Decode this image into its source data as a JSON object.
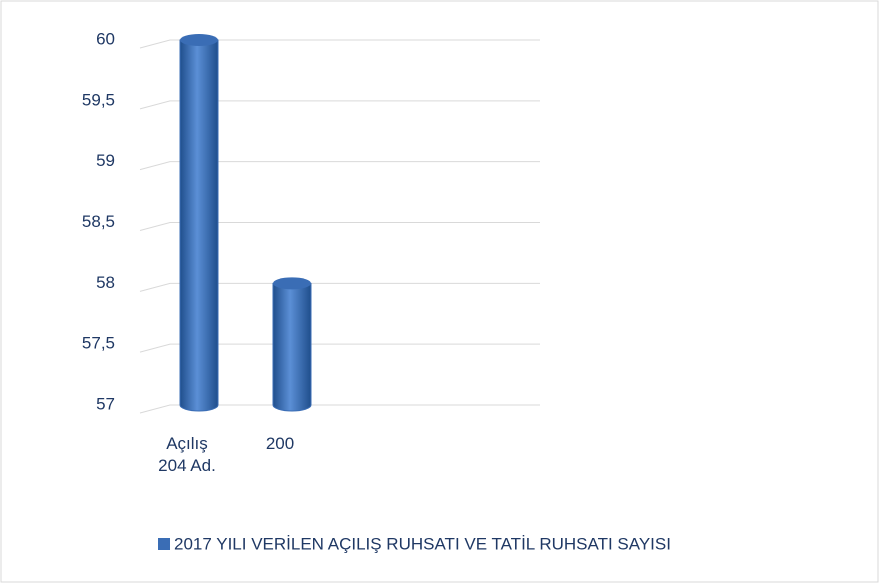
{
  "chart_data": {
    "type": "bar",
    "categories": [
      "Açılış 204  Ad.",
      "200"
    ],
    "series": [
      {
        "name": "2017 YILI VERİLEN AÇILIŞ RUHSATI VE TATİL RUHSATI SAYISI",
        "color": "#3a6db5",
        "values": [
          60,
          58
        ]
      }
    ],
    "ylim": [
      57,
      60
    ],
    "yticks": [
      57,
      {
        "value": 57.5,
        "label": "57,5"
      },
      58,
      {
        "value": 58.5,
        "label": "58,5"
      },
      59,
      {
        "value": 59.5,
        "label": "59,5"
      },
      60
    ],
    "grid": true,
    "legend": "bottom"
  }
}
